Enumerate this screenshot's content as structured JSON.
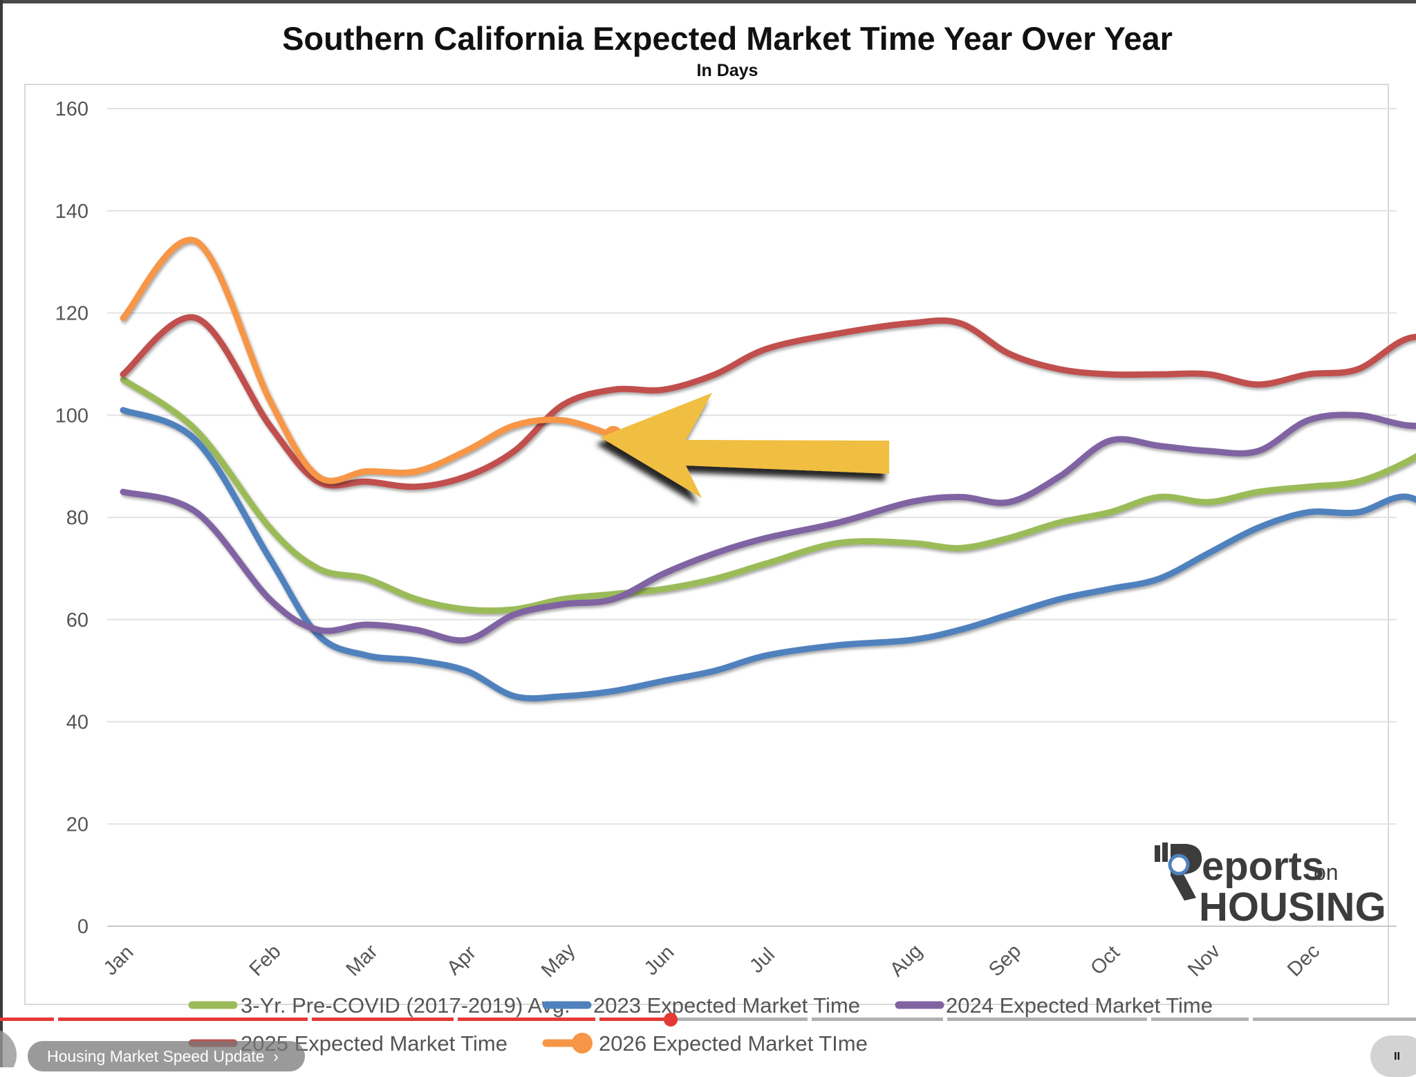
{
  "chart_data": {
    "type": "line",
    "title": "Southern California Expected Market Time Year Over Year",
    "subtitle": "In Days",
    "ylim": [
      0,
      160
    ],
    "yticks": [
      "0",
      "20",
      "40",
      "60",
      "80",
      "100",
      "120",
      "140",
      "160"
    ],
    "months": [
      "Jan",
      "Feb",
      "Mar",
      "Apr",
      "May",
      "Jun",
      "Jul",
      "Aug",
      "Sep",
      "Oct",
      "Nov",
      "Dec"
    ],
    "grid": true,
    "legend_position": "bottom",
    "x_domain": [
      0,
      12.5
    ],
    "series": [
      {
        "name": "3-Yr. Pre-COVID (2017-2019) Avg.",
        "color": "#9bbb59",
        "x": [
          0,
          0.5,
          1.0,
          1.5,
          2.0,
          2.5,
          3.0,
          3.5,
          4.0,
          4.5,
          5.0,
          5.5,
          6.0,
          6.5,
          7.0,
          7.5,
          8.0,
          8.5,
          9.0,
          9.5,
          10.0,
          10.5,
          11.0,
          11.5,
          12.0,
          12.5
        ],
        "values": [
          107,
          97,
          78,
          70,
          68,
          64,
          62,
          62,
          64,
          65,
          66,
          68,
          71,
          75,
          75,
          74,
          76,
          79,
          81,
          84,
          83,
          85,
          86,
          87,
          91,
          97
        ]
      },
      {
        "name": "2023 Expected Market Time",
        "color": "#4f81bd",
        "x": [
          0,
          0.5,
          1.0,
          1.5,
          2.0,
          2.5,
          3.0,
          3.5,
          4.0,
          4.5,
          5.0,
          5.5,
          6.0,
          6.5,
          7.0,
          7.5,
          8.0,
          8.5,
          9.0,
          9.5,
          10.0,
          10.5,
          11.0,
          11.5,
          12.0,
          12.5
        ],
        "values": [
          101,
          95,
          72,
          57,
          53,
          52,
          50,
          45,
          45,
          46,
          48,
          50,
          53,
          55,
          56,
          58,
          61,
          64,
          66,
          68,
          73,
          78,
          81,
          81,
          84,
          78
        ]
      },
      {
        "name": "2024 Expected Market Time",
        "color": "#8064a2",
        "x": [
          0,
          0.5,
          1.0,
          1.5,
          2.0,
          2.5,
          3.0,
          3.5,
          4.0,
          4.5,
          5.0,
          5.5,
          6.0,
          6.5,
          7.0,
          7.5,
          8.0,
          8.5,
          9.0,
          9.5,
          10.0,
          10.5,
          11.0,
          11.5,
          12.0,
          12.5
        ],
        "values": [
          85,
          81,
          64,
          58,
          59,
          58,
          56,
          61,
          63,
          64,
          69,
          73,
          76,
          79,
          83,
          84,
          83,
          88,
          95,
          94,
          93,
          93,
          99,
          100,
          98,
          98
        ]
      },
      {
        "name": "2025 Expected Market Time",
        "color": "#c0504d",
        "x": [
          0,
          0.5,
          1.0,
          1.5,
          2.0,
          2.5,
          3.0,
          3.5,
          4.0,
          4.5,
          5.0,
          5.5,
          6.0,
          6.5,
          7.0,
          7.5,
          8.0,
          8.5,
          9.0,
          9.5,
          10.0,
          10.5,
          11.0,
          11.5,
          12.0,
          12.5
        ],
        "values": [
          108,
          119,
          98,
          87,
          87,
          86,
          88,
          93,
          102,
          105,
          105,
          108,
          113,
          116,
          118,
          118,
          112,
          109,
          108,
          108,
          108,
          106,
          108,
          109,
          115,
          115
        ]
      },
      {
        "name": "2026 Expected Market TIme",
        "color": "#f79646",
        "x": [
          0,
          0.5,
          1.0,
          1.5,
          2.0,
          2.5,
          3.0,
          3.5,
          4.0,
          4.5
        ],
        "values": [
          119,
          134,
          103,
          88,
          89,
          89,
          93,
          98,
          99,
          96
        ]
      }
    ],
    "annotations": {
      "arrow_color": "#f0be40",
      "logo_text_1": "eports",
      "logo_text_2": "on",
      "logo_text_3": "HOUSING"
    }
  },
  "player": {
    "video_title": "Housing Market Speed Update",
    "pause_symbol": "II"
  }
}
